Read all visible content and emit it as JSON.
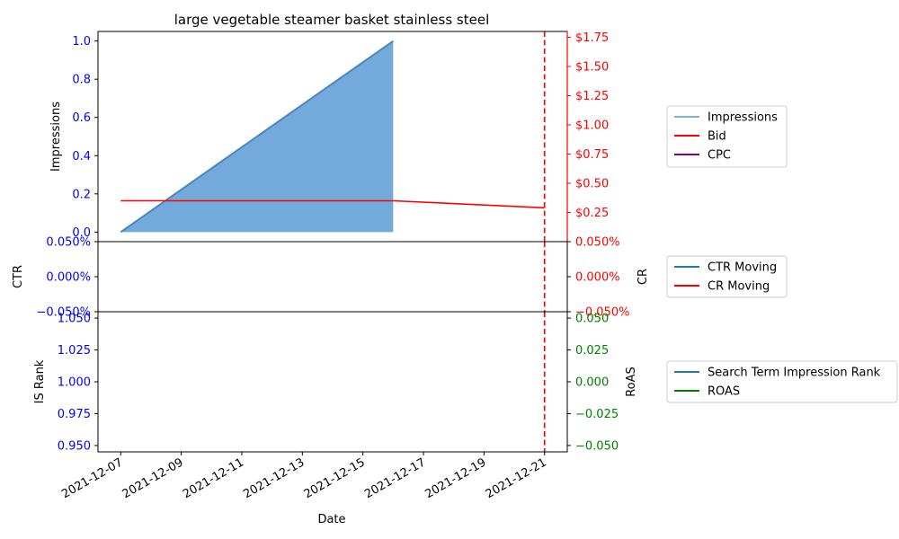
{
  "chart_data": {
    "type": "line",
    "title": "large vegetable steamer basket stainless steel",
    "xlabel": "Date",
    "x_ticks": [
      "2021-12-07",
      "2021-12-09",
      "2021-12-11",
      "2021-12-13",
      "2021-12-15",
      "2021-12-17",
      "2021-12-19",
      "2021-12-21"
    ],
    "x_range": [
      "2021-12-06T06:00",
      "2021-12-21T18:00"
    ],
    "marker_date": "2021-12-21",
    "panels": [
      {
        "id": "top",
        "left_axis": {
          "label": "Impressions",
          "ylim": [
            -0.05,
            1.05
          ],
          "ticks": [
            "0.0",
            "0.2",
            "0.4",
            "0.6",
            "0.8",
            "1.0"
          ],
          "tick_values": [
            0,
            0.2,
            0.4,
            0.6,
            0.8,
            1.0
          ],
          "color": "#0000ff"
        },
        "right_axis": {
          "label": "",
          "ylim": [
            0.0,
            1.8
          ],
          "ticks": [
            "$0.25",
            "$0.50",
            "$0.75",
            "$1.00",
            "$1.25",
            "$1.50",
            "$1.75"
          ],
          "tick_values": [
            0.25,
            0.5,
            0.75,
            1.0,
            1.25,
            1.5,
            1.75
          ],
          "color": "#ff0000"
        },
        "series": [
          {
            "name": "Impressions",
            "axis": "left",
            "kind": "area",
            "color": "#5b9bd5",
            "x": [
              "2021-12-07",
              "2021-12-16"
            ],
            "y": [
              0,
              1
            ]
          },
          {
            "name": "Bid",
            "axis": "right",
            "kind": "line",
            "color": "#ff0000",
            "x": [
              "2021-12-07",
              "2021-12-16",
              "2021-12-21"
            ],
            "y": [
              0.35,
              0.35,
              0.29
            ]
          },
          {
            "name": "CPC",
            "axis": "right",
            "kind": "line",
            "color": "#800080",
            "x": [],
            "y": []
          }
        ]
      },
      {
        "id": "middle",
        "left_axis": {
          "label": "CTR",
          "ylim": [
            -0.0005,
            0.0005
          ],
          "ticks": [
            "−0.050%",
            "0.000%",
            "0.050%"
          ],
          "tick_values": [
            -0.0005,
            0,
            0.0005
          ],
          "color": "#0000ff"
        },
        "right_axis": {
          "label": "CR",
          "ylim": [
            -0.0005,
            0.0005
          ],
          "ticks": [
            "−0.050%",
            "0.000%",
            "0.050%"
          ],
          "tick_values": [
            -0.0005,
            0,
            0.0005
          ],
          "color": "#ff0000"
        },
        "series": [
          {
            "name": "CTR Moving",
            "axis": "left",
            "kind": "line",
            "color": "#1f77b4",
            "x": [],
            "y": []
          },
          {
            "name": "CR Moving",
            "axis": "right",
            "kind": "line",
            "color": "#ff0000",
            "x": [],
            "y": []
          }
        ]
      },
      {
        "id": "bottom",
        "left_axis": {
          "label": "IS Rank",
          "ylim": [
            0.945,
            1.055
          ],
          "ticks": [
            "0.950",
            "0.975",
            "1.000",
            "1.025",
            "1.050"
          ],
          "tick_values": [
            0.95,
            0.975,
            1.0,
            1.025,
            1.05
          ],
          "color": "#0000ff"
        },
        "right_axis": {
          "label": "RoAS",
          "ylim": [
            -0.055,
            0.055
          ],
          "ticks": [
            "−0.050",
            "−0.025",
            "0.000",
            "0.025",
            "0.050"
          ],
          "tick_values": [
            -0.05,
            -0.025,
            0,
            0.025,
            0.05
          ],
          "color": "#008000"
        },
        "series": [
          {
            "name": "Search Term Impression Rank",
            "axis": "left",
            "kind": "line",
            "color": "#1f77b4",
            "x": [],
            "y": []
          },
          {
            "name": "ROAS",
            "axis": "right",
            "kind": "line",
            "color": "#008000",
            "x": [],
            "y": []
          }
        ]
      }
    ],
    "legend_placement": "outside-right",
    "grid": false
  }
}
